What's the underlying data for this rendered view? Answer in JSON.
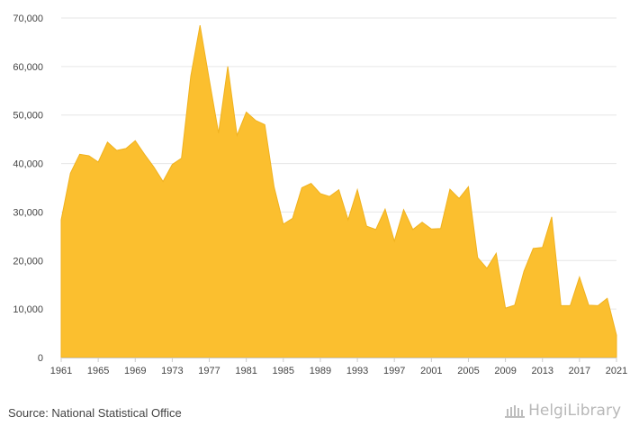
{
  "source_text": "Source: National Statistical Office",
  "brand": {
    "name": "HelgiLibrary",
    "icon": "helgi-library-logo-icon"
  },
  "colors": {
    "area": "#fbbf2f",
    "line": "#f0b21f",
    "grid": "#e6e6e6",
    "axis": "#cccccc"
  },
  "chart_data": {
    "type": "area",
    "title": "",
    "xlabel": "",
    "ylabel": "",
    "x": [
      1961,
      1962,
      1963,
      1964,
      1965,
      1966,
      1967,
      1968,
      1969,
      1970,
      1971,
      1972,
      1973,
      1974,
      1975,
      1976,
      1977,
      1978,
      1979,
      1980,
      1981,
      1982,
      1983,
      1984,
      1985,
      1986,
      1987,
      1988,
      1989,
      1990,
      1991,
      1992,
      1993,
      1994,
      1995,
      1996,
      1997,
      1998,
      1999,
      2000,
      2001,
      2002,
      2003,
      2004,
      2005,
      2006,
      2007,
      2008,
      2009,
      2010,
      2011,
      2012,
      2013,
      2014,
      2015,
      2016,
      2017,
      2018,
      2019,
      2020,
      2021
    ],
    "values": [
      28400,
      38000,
      41900,
      41600,
      40300,
      44400,
      42700,
      43100,
      44700,
      41900,
      39300,
      36300,
      39800,
      41100,
      58000,
      68500,
      57300,
      46300,
      60000,
      45800,
      50600,
      48900,
      48000,
      35200,
      27500,
      28700,
      35000,
      35900,
      33800,
      33200,
      34600,
      28400,
      34600,
      27100,
      26400,
      30600,
      24000,
      30500,
      26400,
      27900,
      26500,
      26600,
      34700,
      32800,
      35200,
      20600,
      18400,
      21500,
      10200,
      10800,
      17800,
      22500,
      22700,
      29000,
      10700,
      10700,
      16600,
      10800,
      10700,
      12200,
      4600
    ],
    "ylim": [
      0,
      70000
    ],
    "y_ticks": [
      0,
      10000,
      20000,
      30000,
      40000,
      50000,
      60000,
      70000
    ],
    "y_tick_labels": [
      "0",
      "10,000",
      "20,000",
      "30,000",
      "40,000",
      "50,000",
      "60,000",
      "70,000"
    ],
    "x_ticks": [
      1961,
      1965,
      1969,
      1973,
      1977,
      1981,
      1985,
      1989,
      1993,
      1997,
      2001,
      2005,
      2009,
      2013,
      2017,
      2021
    ],
    "x_tick_labels": [
      "1961",
      "1965",
      "1969",
      "1973",
      "1977",
      "1981",
      "1985",
      "1989",
      "1993",
      "1997",
      "2001",
      "2005",
      "2009",
      "2013",
      "2017",
      "2021"
    ],
    "grid": true,
    "legend": "none"
  }
}
